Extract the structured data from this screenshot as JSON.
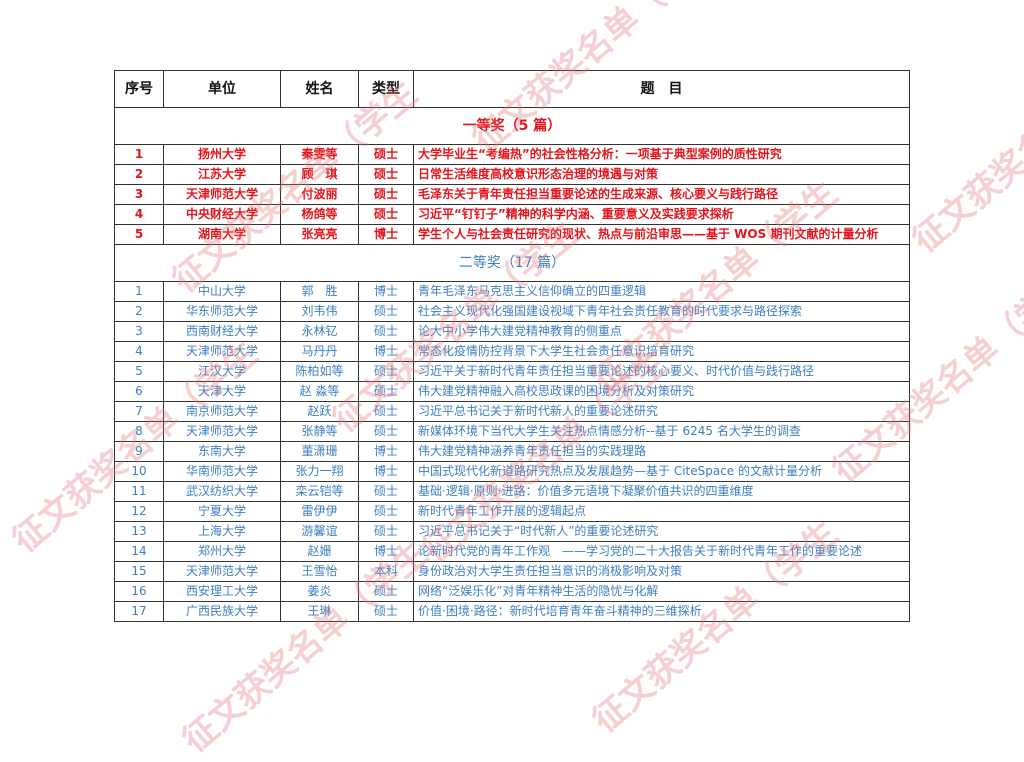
{
  "watermark": "征文获奖名单（学生",
  "colors": {
    "first_prize": "#e3141b",
    "second_prize": "#3d7fc1"
  },
  "headers": {
    "no": "序号",
    "unit": "单位",
    "name": "姓名",
    "type": "类型",
    "title": "题　目"
  },
  "first": {
    "heading": "一等奖（5 篇）",
    "rows": [
      {
        "no": "1",
        "unit": "扬州大学",
        "name": "秦雯等",
        "type": "硕士",
        "title": "大学毕业生“考编热”的社会性格分析：一项基于典型案例的质性研究"
      },
      {
        "no": "2",
        "unit": "江苏大学",
        "name": "顾　琪",
        "type": "硕士",
        "title": "日常生活维度高校意识形态治理的境遇与对策"
      },
      {
        "no": "3",
        "unit": "天津师范大学",
        "name": "付波丽",
        "type": "硕士",
        "title": "毛泽东关于青年责任担当重要论述的生成来源、核心要义与践行路径"
      },
      {
        "no": "4",
        "unit": "中央财经大学",
        "name": "杨鸽等",
        "type": "硕士",
        "title": "习近平“钉钉子”精神的科学内涵、重要意义及实践要求探析"
      },
      {
        "no": "5",
        "unit": "湖南大学",
        "name": "张亮亮",
        "type": "博士",
        "title": "学生个人与社会责任研究的现状、热点与前沿审思——基于 WOS 期刊文献的计量分析"
      }
    ]
  },
  "second": {
    "heading": "二等奖（17 篇）",
    "rows": [
      {
        "no": "1",
        "unit": "中山大学",
        "name": "郭　胜",
        "type": "博士",
        "title": "青年毛泽东马克思主义信仰确立的四重逻辑"
      },
      {
        "no": "2",
        "unit": "华东师范大学",
        "name": "刘韦伟",
        "type": "硕士",
        "title": "社会主义现代化强国建设视域下青年社会责任教育的时代要求与路径探索"
      },
      {
        "no": "3",
        "unit": "西南财经大学",
        "name": "永林钇",
        "type": "硕士",
        "title": "论大中小学伟大建党精神教育的侧重点"
      },
      {
        "no": "4",
        "unit": "天津师范大学",
        "name": "马丹丹",
        "type": "博士",
        "title": "常态化疫情防控背景下大学生社会责任意识培育研究"
      },
      {
        "no": "5",
        "unit": "江汉大学",
        "name": "陈柏如等",
        "type": "硕士",
        "title": "习近平关于新时代青年责任担当重要论述的核心要义、时代价值与践行路径"
      },
      {
        "no": "6",
        "unit": "天津大学",
        "name": "赵 淼等",
        "type": "硕士",
        "title": "伟大建党精神融入高校思政课的困境分析及对策研究"
      },
      {
        "no": "7",
        "unit": "南京师范大学",
        "name": "赵跃",
        "type": "硕士",
        "title": "习近平总书记关于新时代新人的重要论述研究"
      },
      {
        "no": "8",
        "unit": "天津师范大学",
        "name": "张静等",
        "type": "硕士",
        "title": "新媒体环境下当代大学生关注热点情感分析--基于 6245 名大学生的调查"
      },
      {
        "no": "9",
        "unit": "东南大学",
        "name": "董潇珊",
        "type": "博士",
        "title": "伟大建党精神涵养青年责任担当的实践理路"
      },
      {
        "no": "10",
        "unit": "华南师范大学",
        "name": "张力一翔",
        "type": "博士",
        "title": "中国式现代化新道路研究热点及发展趋势—基于 CiteSpace 的文献计量分析"
      },
      {
        "no": "11",
        "unit": "武汉纺织大学",
        "name": "栾云铠等",
        "type": "硕士",
        "title": "基础·逻辑·原则·进路：价值多元语境下凝聚价值共识的四重维度"
      },
      {
        "no": "12",
        "unit": "宁夏大学",
        "name": "雷伊伊",
        "type": "硕士",
        "title": "新时代青年工作开展的逻辑起点"
      },
      {
        "no": "13",
        "unit": "上海大学",
        "name": "游馨谊",
        "type": "硕士",
        "title": "习近平总书记关于“时代新人”的重要论述研究"
      },
      {
        "no": "14",
        "unit": "郑州大学",
        "name": "赵姗",
        "type": "博士",
        "title": "论新时代党的青年工作观　——学习党的二十大报告关于新时代青年工作的重要论述"
      },
      {
        "no": "15",
        "unit": "天津师范大学",
        "name": "王雪怡",
        "type": "本科",
        "title": "身份政治对大学生责任担当意识的消极影响及对策"
      },
      {
        "no": "16",
        "unit": "西安理工大学",
        "name": "姜炎",
        "type": "硕士",
        "title": "网络“泛娱乐化”对青年精神生活的隐忧与化解"
      },
      {
        "no": "17",
        "unit": "广西民族大学",
        "name": "王琳",
        "type": "硕士",
        "title": "价值·困境·路径：新时代培育青年奋斗精神的三维探析"
      }
    ]
  }
}
